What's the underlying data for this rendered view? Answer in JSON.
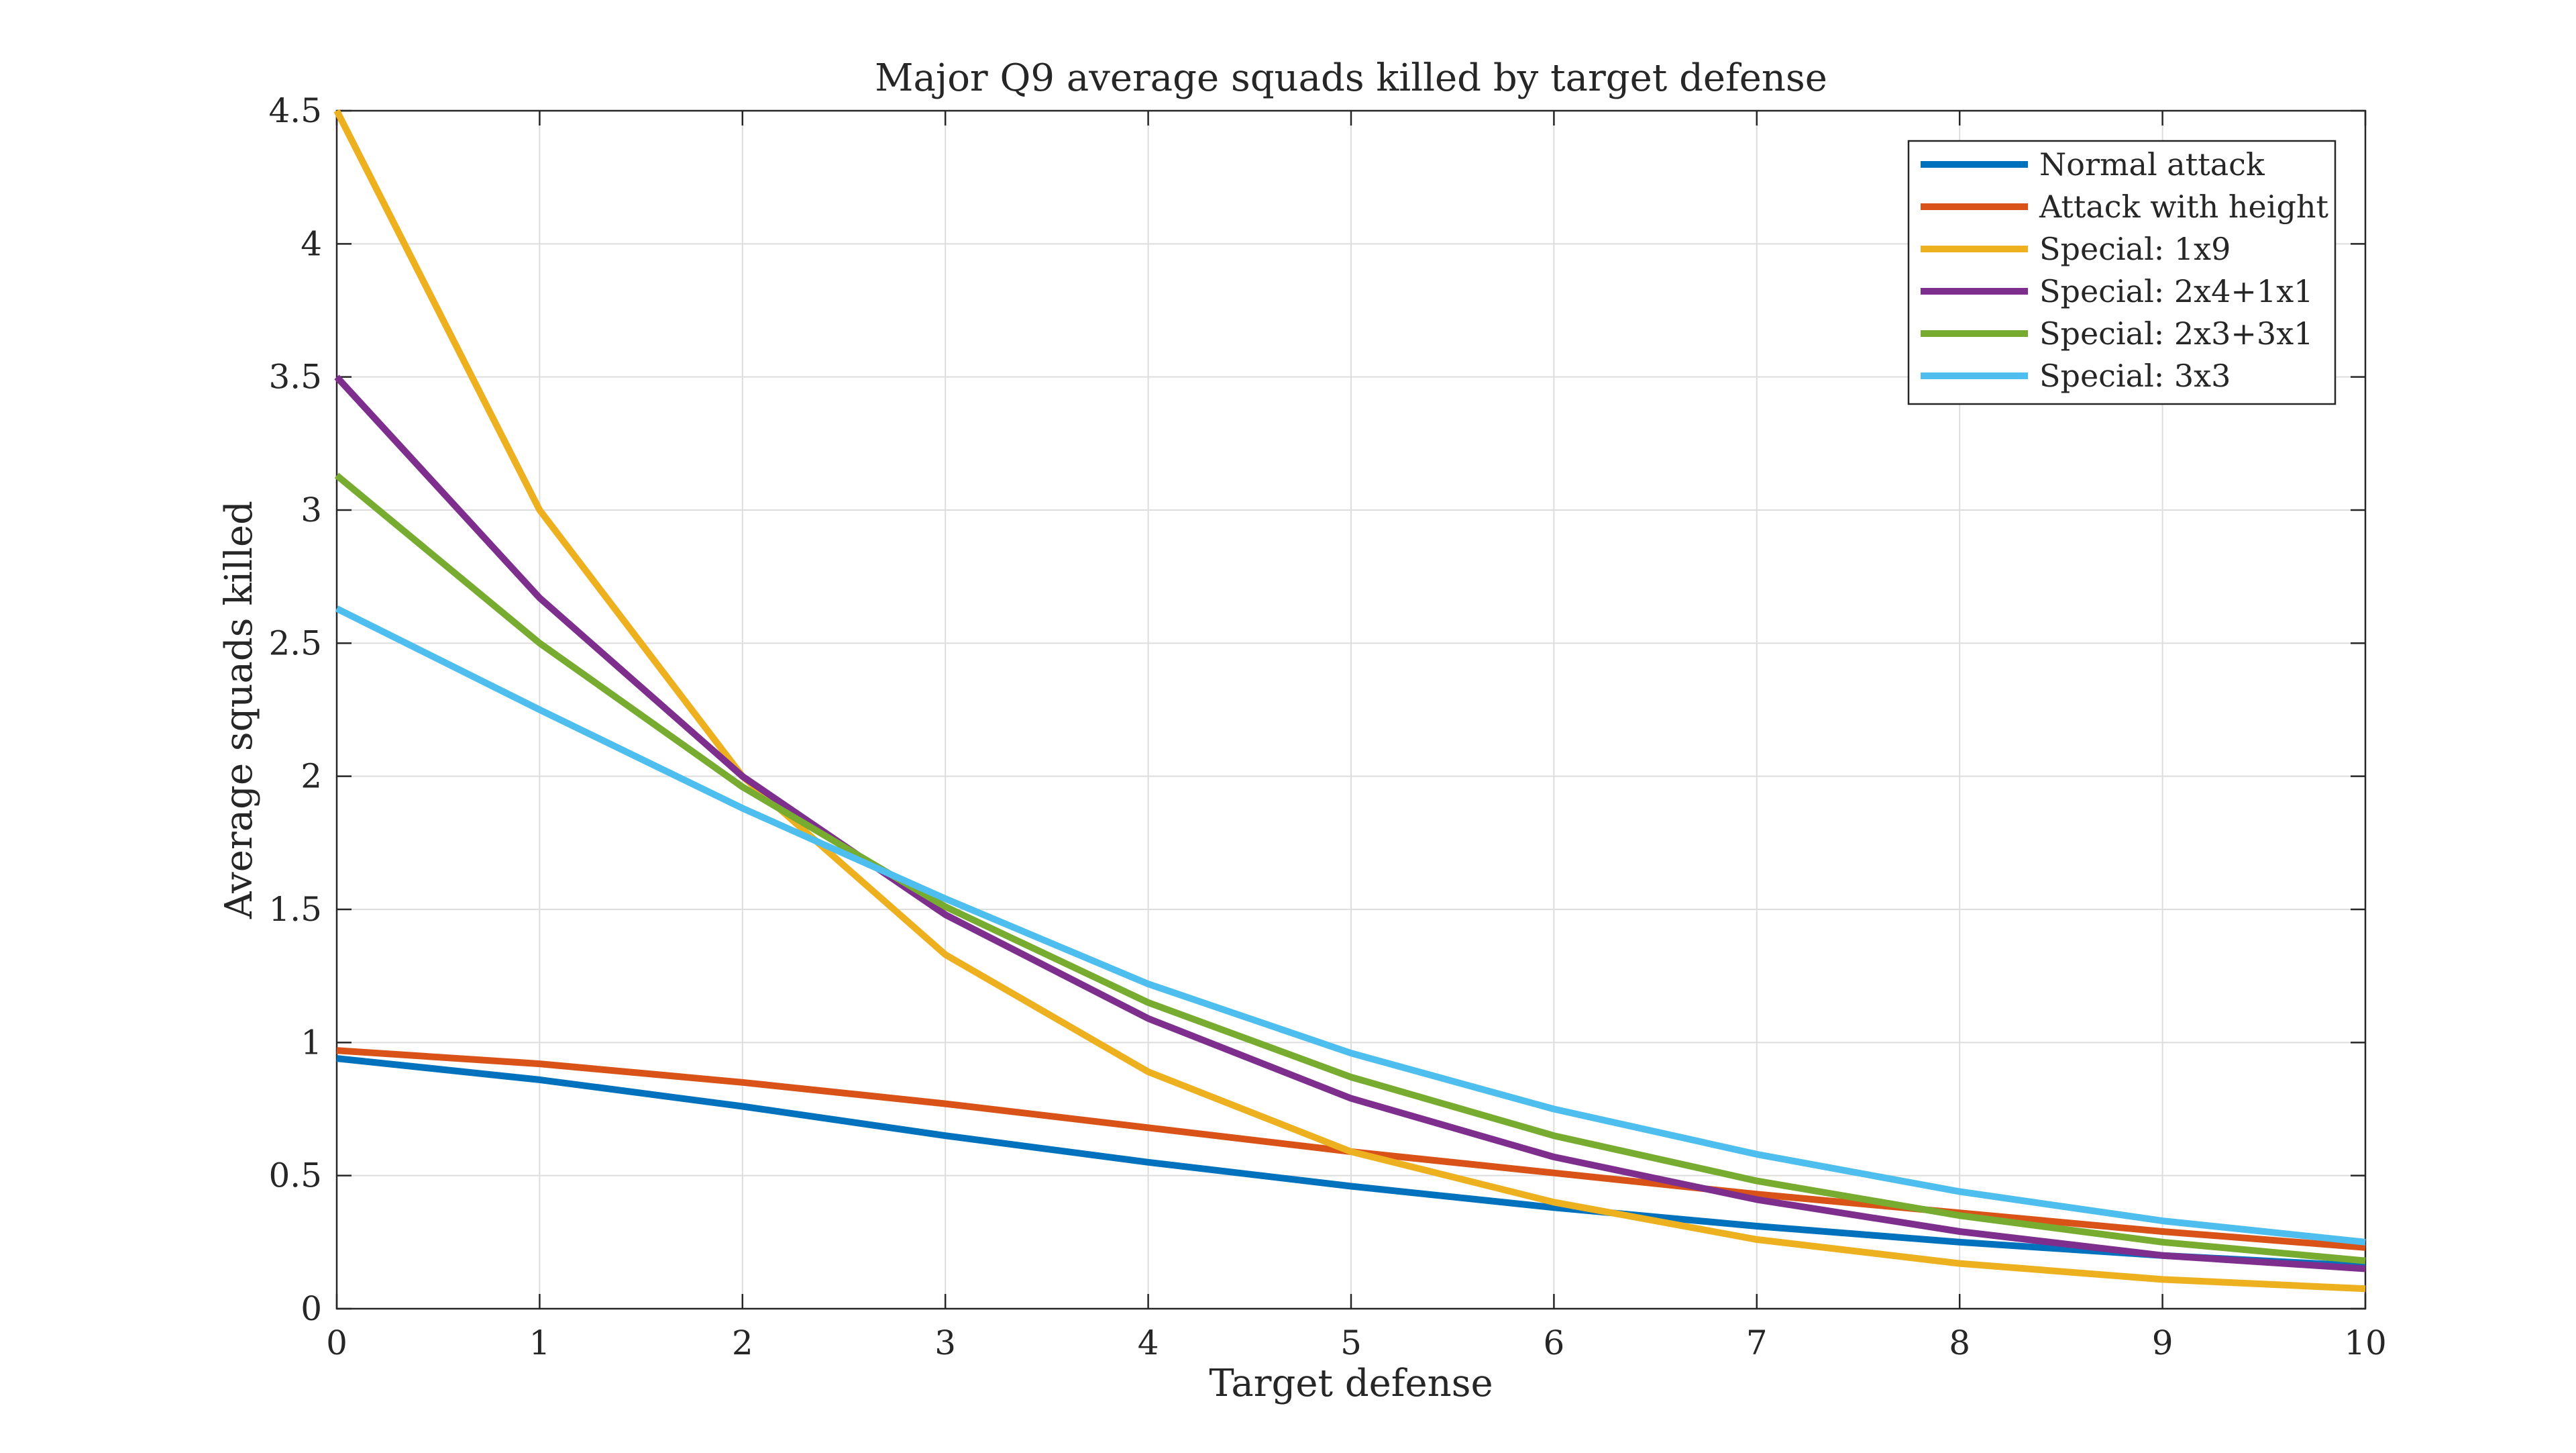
{
  "chart_data": {
    "type": "line",
    "title": "Major Q9 average squads killed by target defense",
    "xlabel": "Target defense",
    "ylabel": "Average squads killed",
    "x": [
      0,
      1,
      2,
      3,
      4,
      5,
      6,
      7,
      8,
      9,
      10
    ],
    "xlim": [
      0,
      10
    ],
    "ylim": [
      0,
      4.5
    ],
    "xticks": [
      "0",
      "1",
      "2",
      "3",
      "4",
      "5",
      "6",
      "7",
      "8",
      "9",
      "10"
    ],
    "yticks": [
      "0",
      "0.5",
      "1",
      "1.5",
      "2",
      "2.5",
      "3",
      "3.5",
      "4",
      "4.5"
    ],
    "grid": true,
    "legend_position": "top-right",
    "series": [
      {
        "name": "Normal attack",
        "color": "#0072BD",
        "values": [
          0.94,
          0.86,
          0.76,
          0.65,
          0.55,
          0.46,
          0.38,
          0.31,
          0.25,
          0.2,
          0.16
        ]
      },
      {
        "name": "Attack with height",
        "color": "#D95319",
        "values": [
          0.97,
          0.92,
          0.85,
          0.77,
          0.68,
          0.59,
          0.51,
          0.43,
          0.36,
          0.29,
          0.23
        ]
      },
      {
        "name": "Special: 1x9",
        "color": "#EDB120",
        "values": [
          4.5,
          3.0,
          2.0,
          1.33,
          0.89,
          0.59,
          0.4,
          0.26,
          0.17,
          0.11,
          0.075
        ]
      },
      {
        "name": "Special: 2x4+1x1",
        "color": "#7E2F8E",
        "values": [
          3.5,
          2.67,
          2.0,
          1.48,
          1.09,
          0.79,
          0.57,
          0.41,
          0.29,
          0.2,
          0.15
        ]
      },
      {
        "name": "Special: 2x3+3x1",
        "color": "#77AC30",
        "values": [
          3.13,
          2.5,
          1.96,
          1.51,
          1.15,
          0.87,
          0.65,
          0.48,
          0.35,
          0.25,
          0.18
        ]
      },
      {
        "name": "Special: 3x3",
        "color": "#4DBEEE",
        "values": [
          2.63,
          2.25,
          1.88,
          1.54,
          1.22,
          0.96,
          0.75,
          0.58,
          0.44,
          0.33,
          0.25
        ]
      }
    ]
  }
}
